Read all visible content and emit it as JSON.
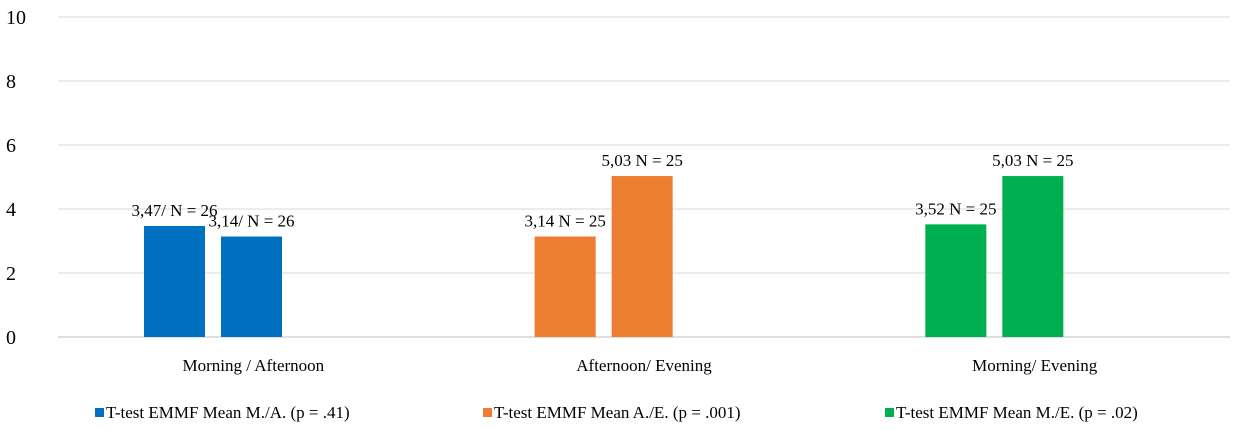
{
  "chart_data": {
    "type": "bar",
    "ylim": [
      0,
      10
    ],
    "yticks": [
      "0",
      "2",
      "4",
      "6",
      "8",
      "10"
    ],
    "grid": true,
    "legend_position": "bottom",
    "groups": [
      {
        "category": "Morning / Afternoon",
        "color": "#0070C0",
        "values": [
          3.47,
          3.14
        ],
        "labels": [
          "3,47/ N = 26",
          "3,14/ N = 26"
        ]
      },
      {
        "category": "Afternoon/ Evening",
        "color": "#ED7D31",
        "values": [
          3.14,
          5.03
        ],
        "labels": [
          "3,14 N = 25",
          "5,03 N = 25"
        ]
      },
      {
        "category": "Morning/ Evening",
        "color": "#00B050",
        "values": [
          3.52,
          5.03
        ],
        "labels": [
          "3,52 N = 25",
          "5,03 N = 25"
        ]
      }
    ],
    "legend": [
      {
        "name": "T-test EMMF Mean M./A. (p = .41)",
        "color": "#0070C0"
      },
      {
        "name": "T-test EMMF Mean A./E. (p = .001)",
        "color": "#ED7D31"
      },
      {
        "name": "T-test EMMF Mean M./E. (p = .02)",
        "color": "#00B050"
      }
    ]
  }
}
